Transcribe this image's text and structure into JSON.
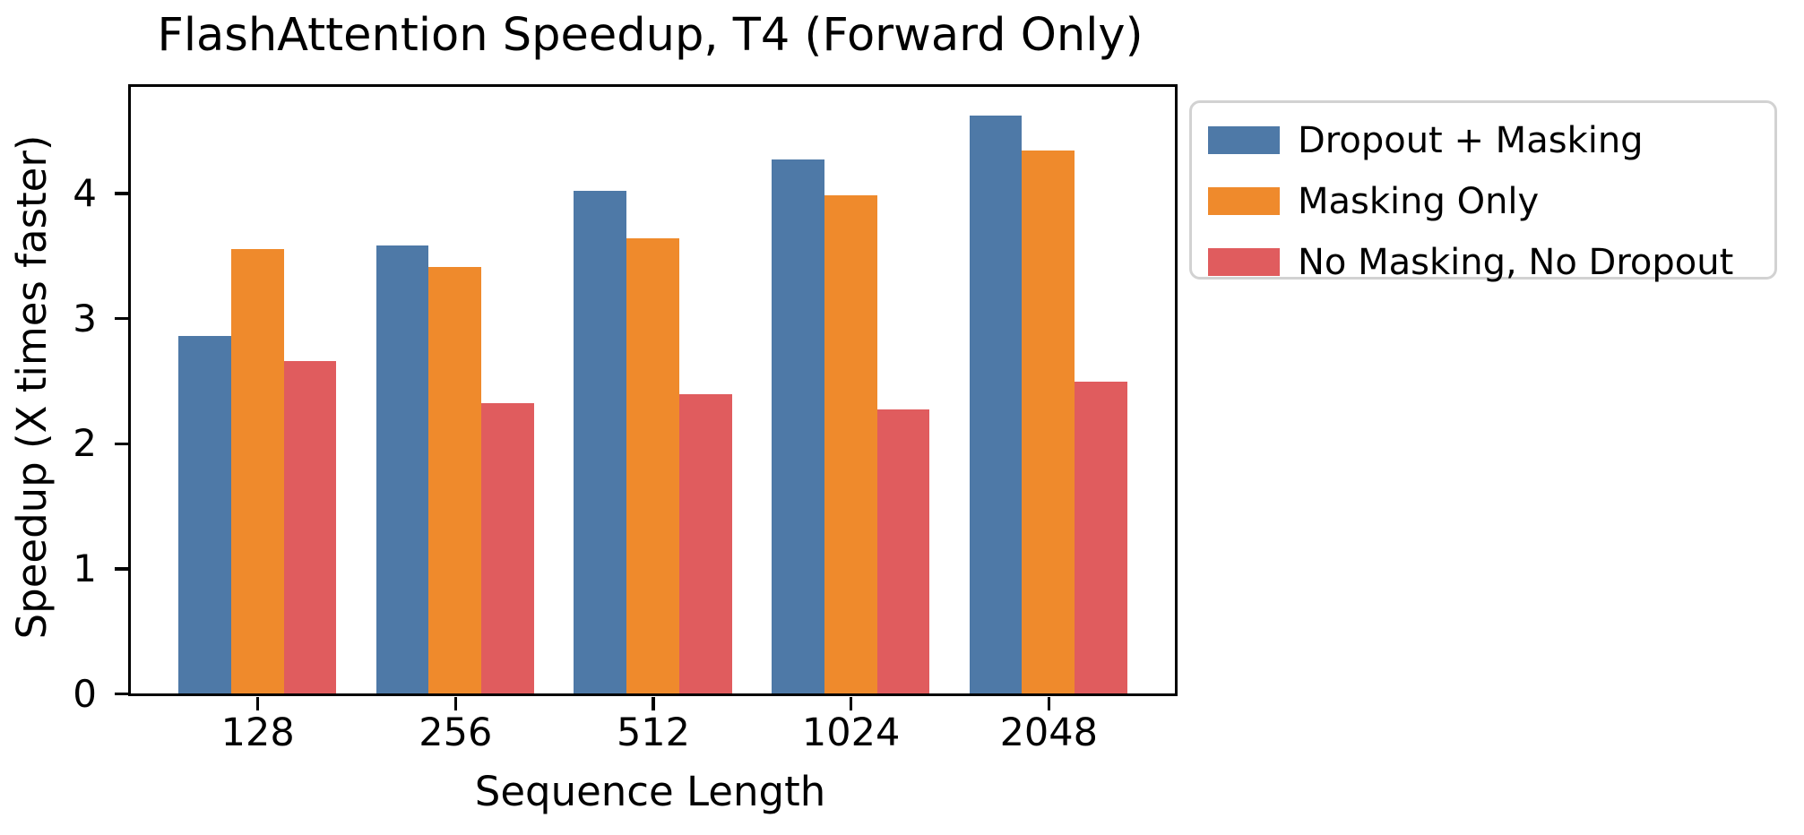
{
  "title": "FlashAttention Speedup, T4 (Forward Only)",
  "chart_data": {
    "type": "bar",
    "title": "FlashAttention Speedup, T4 (Forward Only)",
    "xlabel": "Sequence Length",
    "ylabel": "Speedup (X times faster)",
    "categories": [
      "128",
      "256",
      "512",
      "1024",
      "2048"
    ],
    "series": [
      {
        "name": "Dropout + Masking",
        "color": "#4e79a7",
        "values": [
          2.86,
          3.58,
          4.02,
          4.27,
          4.62
        ]
      },
      {
        "name": "Masking Only",
        "color": "#ef8a2c",
        "values": [
          3.55,
          3.41,
          3.64,
          3.98,
          4.34
        ]
      },
      {
        "name": "No Masking, No Dropout",
        "color": "#e05c5e",
        "values": [
          2.66,
          2.32,
          2.39,
          2.27,
          2.49
        ]
      }
    ],
    "yticks": [
      0,
      1,
      2,
      3,
      4
    ],
    "ylim": [
      0,
      4.85
    ],
    "grid": false,
    "legend_position": "upper right, outside plot",
    "axis_color": "#000000",
    "legend_border_color": "#d2d2d2",
    "background_color": "#ffffff"
  }
}
